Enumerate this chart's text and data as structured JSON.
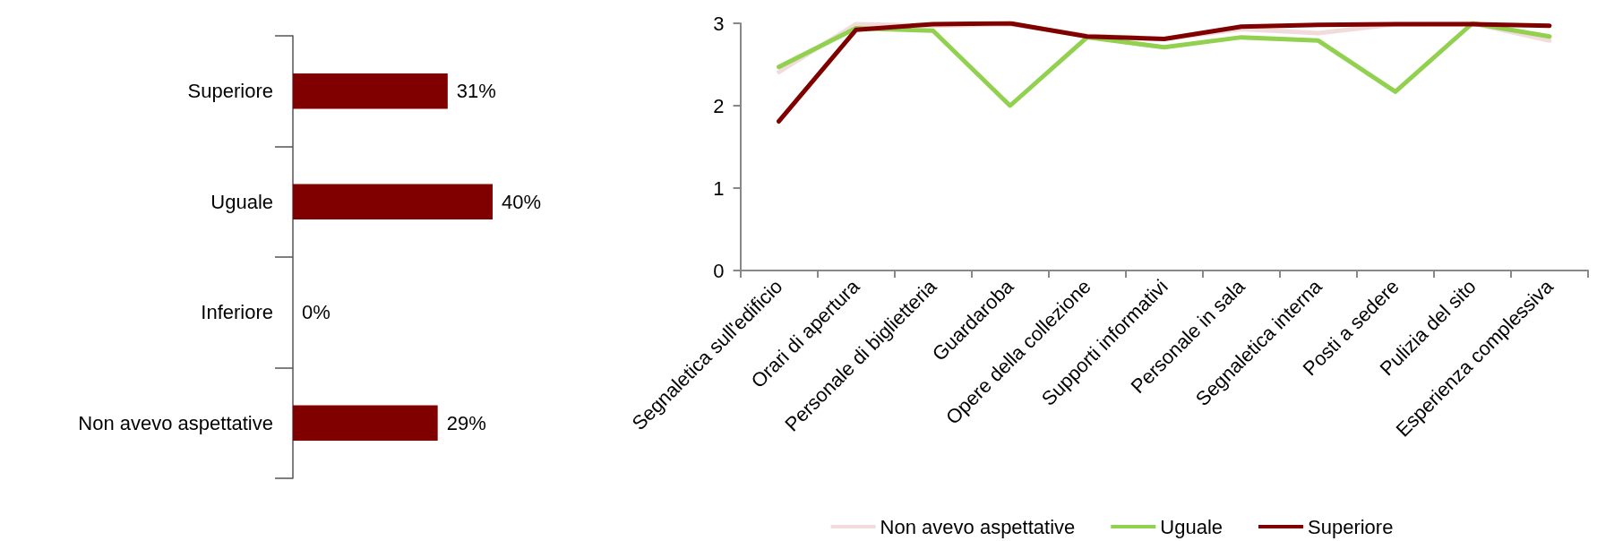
{
  "chart_data": [
    {
      "type": "bar",
      "orientation": "horizontal",
      "categories": [
        "Superiore",
        "Uguale",
        "Inferiore",
        "Non avevo aspettative"
      ],
      "values": [
        31,
        40,
        0,
        29
      ],
      "value_labels": [
        "31%",
        "40%",
        "0%",
        "29%"
      ],
      "color": "#800000",
      "tick_labels": "y"
    },
    {
      "type": "line",
      "categories": [
        "Segnaletica sull'edificio",
        "Orari di apertura",
        "Personale di biglietteria",
        "Guardaroba",
        "Opere della collezione",
        "Supporti informativi",
        "Personale in sala",
        "Segnaletica interna",
        "Posti a sedere",
        "Pulizia del sito",
        "Esperienza complessiva"
      ],
      "series": [
        {
          "name": "Non avevo aspettative",
          "color": "#f2dcdb",
          "values": [
            2.41,
            2.99,
            2.97,
            2.99,
            2.85,
            2.81,
            2.93,
            2.88,
            2.99,
            3.0,
            2.79
          ]
        },
        {
          "name": "Uguale",
          "color": "#92d050",
          "values": [
            2.47,
            2.94,
            2.91,
            2.0,
            2.83,
            2.71,
            2.83,
            2.79,
            2.17,
            3.0,
            2.84
          ]
        },
        {
          "name": "Superiore",
          "color": "#800000",
          "values": [
            1.81,
            2.92,
            2.99,
            3.0,
            2.84,
            2.81,
            2.96,
            2.98,
            2.99,
            2.99,
            2.97
          ]
        }
      ],
      "ylim": [
        0,
        3
      ],
      "yticks": [
        0,
        1,
        2,
        3
      ],
      "grid": false,
      "legend": "bottom",
      "marker": "none",
      "line_style": "solid"
    }
  ]
}
